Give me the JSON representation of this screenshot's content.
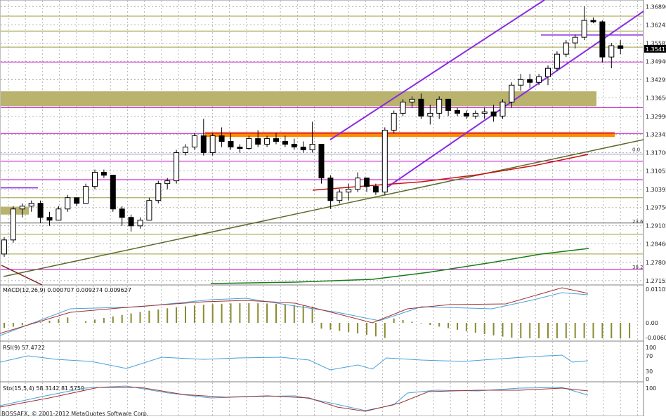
{
  "chart_data": [
    {
      "panel": "price",
      "type": "candlestick",
      "title": "",
      "yticks": [
        "1.36890",
        "1.36245",
        "1.35585",
        "1.34940",
        "1.34295",
        "1.33650",
        "1.32990",
        "1.32345",
        "1.31700",
        "1.31055",
        "1.30395",
        "1.29750",
        "1.29105",
        "1.28460",
        "1.27800",
        "1.27155"
      ],
      "ylim": [
        1.2705,
        1.3705
      ],
      "current_price": "1.35417",
      "fib_labels": [
        "0.0",
        "23.6",
        "38.2"
      ],
      "fib_values": [
        1.317,
        1.2914,
        1.2752
      ],
      "candles": [
        [
          1.281,
          1.287,
          1.28,
          1.286
        ],
        [
          1.286,
          1.298,
          1.285,
          1.297
        ],
        [
          1.297,
          1.299,
          1.294,
          1.298
        ],
        [
          1.298,
          1.3,
          1.296,
          1.299
        ],
        [
          1.299,
          1.3,
          1.292,
          1.294
        ],
        [
          1.294,
          1.296,
          1.291,
          1.293
        ],
        [
          1.293,
          1.298,
          1.293,
          1.297
        ],
        [
          1.297,
          1.302,
          1.296,
          1.301
        ],
        [
          1.301,
          1.301,
          1.298,
          1.299
        ],
        [
          1.299,
          1.306,
          1.299,
          1.305
        ],
        [
          1.305,
          1.311,
          1.304,
          1.31
        ],
        [
          1.31,
          1.311,
          1.308,
          1.309
        ],
        [
          1.309,
          1.309,
          1.296,
          1.297
        ],
        [
          1.297,
          1.298,
          1.291,
          1.294
        ],
        [
          1.294,
          1.295,
          1.289,
          1.291
        ],
        [
          1.291,
          1.294,
          1.29,
          1.293
        ],
        [
          1.293,
          1.301,
          1.293,
          1.3
        ],
        [
          1.3,
          1.307,
          1.299,
          1.306
        ],
        [
          1.306,
          1.308,
          1.304,
          1.307
        ],
        [
          1.307,
          1.318,
          1.306,
          1.317
        ],
        [
          1.317,
          1.32,
          1.316,
          1.319
        ],
        [
          1.319,
          1.324,
          1.318,
          1.323
        ],
        [
          1.323,
          1.329,
          1.316,
          1.317
        ],
        [
          1.317,
          1.324,
          1.316,
          1.323
        ],
        [
          1.323,
          1.326,
          1.319,
          1.321
        ],
        [
          1.321,
          1.324,
          1.318,
          1.319
        ],
        [
          1.319,
          1.32,
          1.317,
          1.3185
        ],
        [
          1.3185,
          1.323,
          1.318,
          1.322
        ],
        [
          1.322,
          1.325,
          1.319,
          1.32
        ],
        [
          1.32,
          1.323,
          1.319,
          1.322
        ],
        [
          1.322,
          1.324,
          1.32,
          1.321
        ],
        [
          1.321,
          1.323,
          1.319,
          1.32
        ],
        [
          1.32,
          1.322,
          1.318,
          1.319
        ],
        [
          1.319,
          1.321,
          1.317,
          1.318
        ],
        [
          1.318,
          1.328,
          1.317,
          1.32
        ],
        [
          1.32,
          1.32,
          1.306,
          1.308
        ],
        [
          1.308,
          1.309,
          1.297,
          1.3
        ],
        [
          1.3,
          1.304,
          1.299,
          1.303
        ],
        [
          1.303,
          1.306,
          1.3,
          1.304
        ],
        [
          1.304,
          1.31,
          1.303,
          1.308
        ],
        [
          1.308,
          1.308,
          1.303,
          1.305
        ],
        [
          1.305,
          1.306,
          1.302,
          1.303
        ],
        [
          1.303,
          1.326,
          1.302,
          1.325
        ],
        [
          1.325,
          1.332,
          1.324,
          1.331
        ],
        [
          1.331,
          1.336,
          1.33,
          1.335
        ],
        [
          1.335,
          1.337,
          1.333,
          1.336
        ],
        [
          1.336,
          1.338,
          1.329,
          1.33
        ],
        [
          1.33,
          1.334,
          1.327,
          1.331
        ],
        [
          1.331,
          1.337,
          1.329,
          1.336
        ],
        [
          1.336,
          1.336,
          1.33,
          1.332
        ],
        [
          1.332,
          1.333,
          1.33,
          1.331
        ],
        [
          1.331,
          1.332,
          1.329,
          1.33
        ],
        [
          1.33,
          1.332,
          1.329,
          1.331
        ],
        [
          1.331,
          1.333,
          1.329,
          1.3315
        ],
        [
          1.3315,
          1.334,
          1.328,
          1.33
        ],
        [
          1.33,
          1.336,
          1.329,
          1.335
        ],
        [
          1.335,
          1.342,
          1.333,
          1.341
        ],
        [
          1.341,
          1.345,
          1.339,
          1.343
        ],
        [
          1.343,
          1.345,
          1.34,
          1.342
        ],
        [
          1.342,
          1.345,
          1.341,
          1.344
        ],
        [
          1.344,
          1.348,
          1.341,
          1.347
        ],
        [
          1.347,
          1.353,
          1.346,
          1.352
        ],
        [
          1.352,
          1.357,
          1.351,
          1.356
        ],
        [
          1.356,
          1.359,
          1.354,
          1.358
        ],
        [
          1.358,
          1.369,
          1.357,
          1.364
        ],
        [
          1.364,
          1.365,
          1.363,
          1.3635
        ],
        [
          1.3635,
          1.364,
          1.349,
          1.351
        ],
        [
          1.351,
          1.356,
          1.347,
          1.355
        ],
        [
          1.355,
          1.357,
          1.352,
          1.354
        ]
      ]
    },
    {
      "panel": "macd",
      "type": "bar+line",
      "title": "MACD(12,26,9) 0.000707 0.009274 0.009627",
      "yticks": [
        "0.011052",
        "0.00",
        "-0.00604"
      ]
    },
    {
      "panel": "rsi",
      "type": "line",
      "title": "RSI(9) 57.4722",
      "yticks": [
        "100",
        "70",
        "30",
        "0"
      ]
    },
    {
      "panel": "stochastic",
      "type": "line",
      "title": "Sto(15,5,4) 58.3142 81.5759",
      "yticks": [
        "100"
      ]
    }
  ],
  "footer": "BOSSAFX, © 2001-2012 MetaQuotes Software Corp.",
  "colors": {
    "up_candle": "#ffffff",
    "down_candle": "#000000",
    "channel": "#8a2be2",
    "hline": "#c000c0",
    "olive_line": "#9c9c3c",
    "zone_olive": "#b9b36e",
    "zone_orange": "#ff8c00",
    "ma_red": "#cc1010",
    "ma_green": "#1a7a1a",
    "trend_olive": "#5c6b2a",
    "macd_hist": "#8a8a30"
  }
}
